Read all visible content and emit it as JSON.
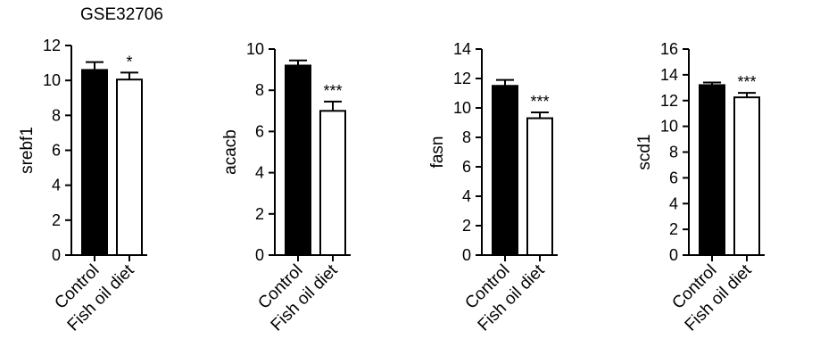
{
  "dataset_label": "GSE32706",
  "colors": {
    "control": "#000000",
    "fish_oil": "#ffffff",
    "stroke": "#000000"
  },
  "chart_data": [
    {
      "type": "bar",
      "categories": [
        "Control",
        "Fish oil diet"
      ],
      "values": [
        10.6,
        10.05
      ],
      "errors": [
        0.45,
        0.4
      ],
      "significance": [
        "",
        "*"
      ],
      "ylabel": "srebf1",
      "ylim": [
        0,
        12
      ],
      "yticks": [
        0,
        2,
        4,
        6,
        8,
        10,
        12
      ]
    },
    {
      "type": "bar",
      "categories": [
        "Control",
        "Fish oil diet"
      ],
      "values": [
        9.2,
        7.0
      ],
      "errors": [
        0.25,
        0.45
      ],
      "significance": [
        "",
        "***"
      ],
      "ylabel": "acacb",
      "ylim": [
        0,
        10
      ],
      "yticks": [
        0,
        2,
        4,
        6,
        8,
        10
      ]
    },
    {
      "type": "bar",
      "categories": [
        "Control",
        "Fish oil diet"
      ],
      "values": [
        11.5,
        9.3
      ],
      "errors": [
        0.4,
        0.4
      ],
      "significance": [
        "",
        "***"
      ],
      "ylabel": "fasn",
      "ylim": [
        0,
        14
      ],
      "yticks": [
        0,
        2,
        4,
        6,
        8,
        10,
        12,
        14
      ]
    },
    {
      "type": "bar",
      "categories": [
        "Control",
        "Fish oil diet"
      ],
      "values": [
        13.2,
        12.25
      ],
      "errors": [
        0.2,
        0.35
      ],
      "significance": [
        "",
        "***"
      ],
      "ylabel": "scd1",
      "ylim": [
        0,
        16
      ],
      "yticks": [
        0,
        2,
        4,
        6,
        8,
        10,
        12,
        14,
        16
      ]
    }
  ]
}
